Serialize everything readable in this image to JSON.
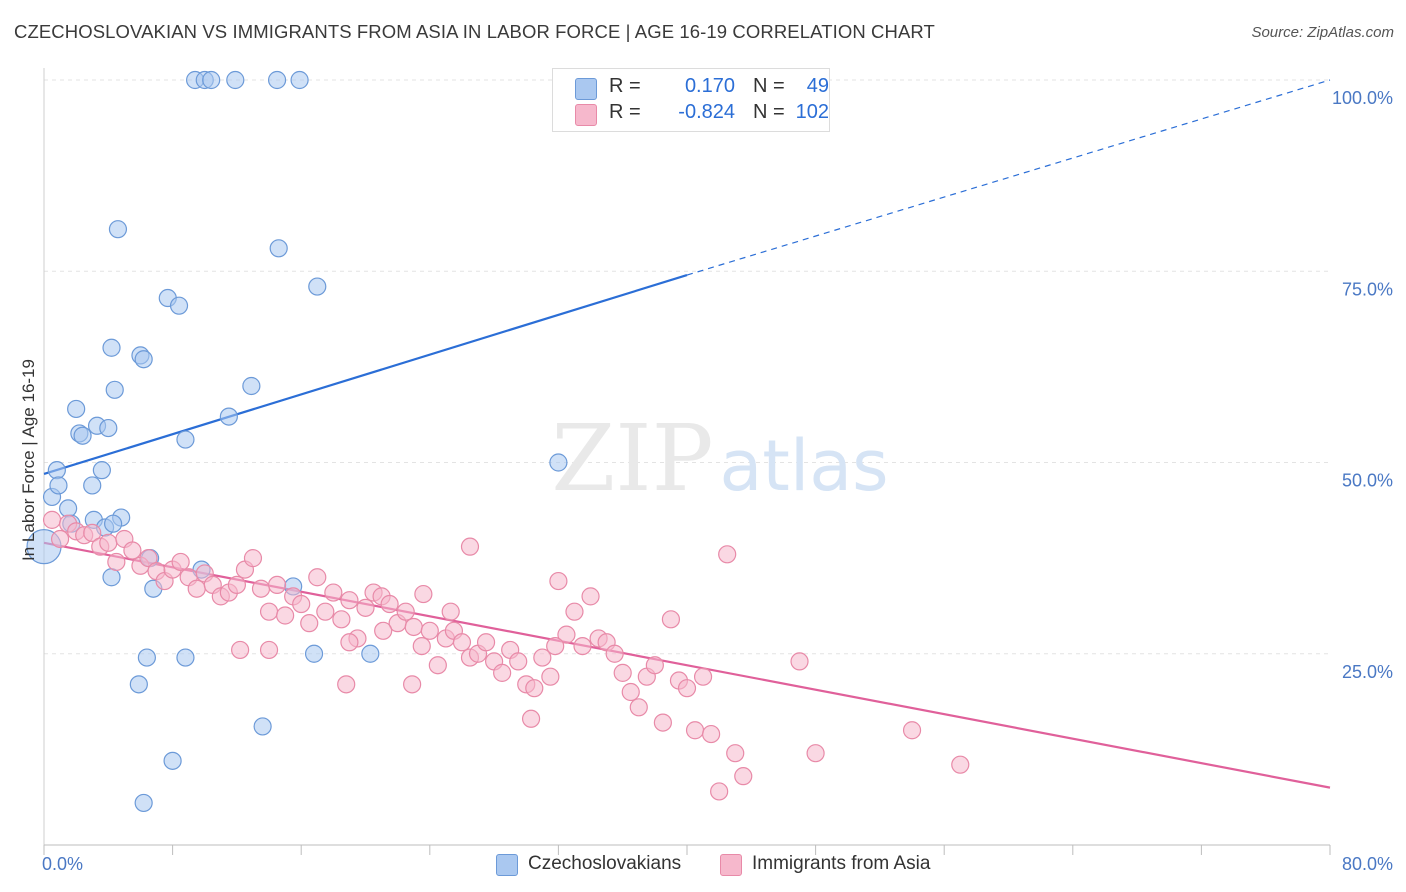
{
  "title": "CZECHOSLOVAKIAN VS IMMIGRANTS FROM ASIA IN LABOR FORCE | AGE 16-19 CORRELATION CHART",
  "source": "Source: ZipAtlas.com",
  "watermark": {
    "part1": "ZIP",
    "part2": "atlas"
  },
  "legend": {
    "rows": [
      {
        "r_label": "R =",
        "r_value": "0.170",
        "n_label": "N =",
        "n_value": "49"
      },
      {
        "r_label": "R =",
        "r_value": "-0.824",
        "n_label": "N =",
        "n_value": "102"
      }
    ]
  },
  "colors": {
    "blue_fill": "#aac8f0",
    "blue_stroke": "#6c9ad8",
    "blue_line": "#2b6ed6",
    "pink_fill": "#f6b8cc",
    "pink_stroke": "#e88aa8",
    "pink_line": "#e0609a",
    "grid": "#e3e3e3",
    "axis_text": "#4a78c4"
  },
  "chart_data": {
    "type": "scatter",
    "title": "CZECHOSLOVAKIAN VS IMMIGRANTS FROM ASIA IN LABOR FORCE | AGE 16-19 CORRELATION CHART",
    "xlabel": "",
    "ylabel": "In Labor Force | Age 16-19",
    "xlim": [
      0,
      80
    ],
    "ylim": [
      0,
      100
    ],
    "x_tick_labels": [
      "0.0%",
      "80.0%"
    ],
    "y_ticks": [
      25,
      50,
      75,
      100
    ],
    "y_tick_labels": [
      "25.0%",
      "50.0%",
      "75.0%",
      "100.0%"
    ],
    "grid": true,
    "legend_position": "top-center",
    "series": [
      {
        "name": "Czechoslovakians",
        "R": 0.17,
        "N": 49,
        "trend": {
          "x0": 0,
          "y0": 48.5,
          "x1": 40,
          "y1": 74.5,
          "dashed_to_x": 80,
          "dashed_to_y": 100
        },
        "points": [
          [
            0.0,
            39.0,
            "big"
          ],
          [
            0.5,
            45.5
          ],
          [
            0.8,
            49.0
          ],
          [
            0.9,
            47.0
          ],
          [
            1.5,
            44.0
          ],
          [
            1.7,
            42.0
          ],
          [
            2.0,
            57.0
          ],
          [
            2.2,
            53.8
          ],
          [
            2.4,
            53.5
          ],
          [
            3.0,
            47.0
          ],
          [
            3.1,
            42.5
          ],
          [
            3.3,
            54.8
          ],
          [
            3.6,
            49.0
          ],
          [
            3.8,
            41.5
          ],
          [
            4.0,
            54.5
          ],
          [
            4.2,
            65.0
          ],
          [
            4.4,
            59.5
          ],
          [
            4.6,
            80.5
          ],
          [
            4.8,
            42.8
          ],
          [
            4.2,
            35.0
          ],
          [
            6.0,
            64.0
          ],
          [
            6.2,
            63.5
          ],
          [
            6.6,
            37.5
          ],
          [
            6.8,
            33.5
          ],
          [
            7.7,
            71.5
          ],
          [
            8.4,
            70.5
          ],
          [
            8.8,
            53.0
          ],
          [
            6.4,
            24.5
          ],
          [
            5.9,
            21.0
          ],
          [
            8.0,
            11.0
          ],
          [
            6.2,
            5.5
          ],
          [
            9.4,
            100
          ],
          [
            10.0,
            100
          ],
          [
            10.4,
            100
          ],
          [
            11.9,
            100
          ],
          [
            14.5,
            100
          ],
          [
            15.9,
            100
          ],
          [
            11.5,
            56.0
          ],
          [
            12.9,
            60.0
          ],
          [
            14.6,
            78.0
          ],
          [
            17.0,
            73.0
          ],
          [
            15.5,
            33.8
          ],
          [
            16.8,
            25.0
          ],
          [
            20.3,
            25.0
          ],
          [
            13.6,
            15.5
          ],
          [
            32.0,
            50.0
          ],
          [
            8.8,
            24.5
          ],
          [
            9.8,
            36.0
          ],
          [
            4.3,
            42.0
          ]
        ]
      },
      {
        "name": "Immigrants from Asia",
        "R": -0.824,
        "N": 102,
        "trend": {
          "x0": 0,
          "y0": 39.5,
          "x1": 80,
          "y1": 7.5
        },
        "points": [
          [
            0.5,
            42.5
          ],
          [
            1.0,
            40.0
          ],
          [
            1.5,
            42.0
          ],
          [
            2.0,
            41.0
          ],
          [
            2.5,
            40.5
          ],
          [
            3.0,
            40.8
          ],
          [
            3.5,
            39.0
          ],
          [
            4.0,
            39.5
          ],
          [
            4.5,
            37.0
          ],
          [
            5.0,
            40.0
          ],
          [
            5.5,
            38.5
          ],
          [
            6.0,
            36.5
          ],
          [
            6.5,
            37.5
          ],
          [
            7.0,
            35.8
          ],
          [
            7.5,
            34.5
          ],
          [
            8.0,
            36.0
          ],
          [
            8.5,
            37.0
          ],
          [
            9.0,
            35.0
          ],
          [
            9.5,
            33.5
          ],
          [
            10.0,
            35.5
          ],
          [
            10.5,
            34.0
          ],
          [
            11.0,
            32.5
          ],
          [
            11.5,
            33.0
          ],
          [
            12.0,
            34.0
          ],
          [
            12.5,
            36.0
          ],
          [
            13.0,
            37.5
          ],
          [
            13.5,
            33.5
          ],
          [
            14.0,
            30.5
          ],
          [
            14.5,
            34.0
          ],
          [
            15.0,
            30.0
          ],
          [
            15.5,
            32.5
          ],
          [
            16.0,
            31.5
          ],
          [
            16.5,
            29.0
          ],
          [
            17.0,
            35.0
          ],
          [
            17.5,
            30.5
          ],
          [
            18.0,
            33.0
          ],
          [
            18.5,
            29.5
          ],
          [
            19.0,
            32.0
          ],
          [
            19.5,
            27.0
          ],
          [
            20.0,
            31.0
          ],
          [
            20.5,
            33.0
          ],
          [
            21.0,
            32.5
          ],
          [
            21.5,
            31.5
          ],
          [
            22.0,
            29.0
          ],
          [
            22.5,
            30.5
          ],
          [
            23.0,
            28.5
          ],
          [
            23.5,
            26.0
          ],
          [
            24.0,
            28.0
          ],
          [
            24.5,
            23.5
          ],
          [
            25.0,
            27.0
          ],
          [
            25.5,
            28.0
          ],
          [
            26.0,
            26.5
          ],
          [
            26.5,
            24.5
          ],
          [
            27.0,
            25.0
          ],
          [
            27.5,
            26.5
          ],
          [
            28.0,
            24.0
          ],
          [
            28.5,
            22.5
          ],
          [
            29.0,
            25.5
          ],
          [
            29.5,
            24.0
          ],
          [
            30.0,
            21.0
          ],
          [
            30.5,
            20.5
          ],
          [
            31.0,
            24.5
          ],
          [
            31.5,
            22.0
          ],
          [
            32.0,
            34.5
          ],
          [
            32.5,
            27.5
          ],
          [
            33.0,
            30.5
          ],
          [
            33.5,
            26.0
          ],
          [
            34.0,
            32.5
          ],
          [
            34.5,
            27.0
          ],
          [
            35.0,
            26.5
          ],
          [
            35.5,
            25.0
          ],
          [
            36.0,
            22.5
          ],
          [
            36.5,
            20.0
          ],
          [
            37.0,
            18.0
          ],
          [
            37.5,
            22.0
          ],
          [
            38.0,
            23.5
          ],
          [
            38.5,
            16.0
          ],
          [
            39.0,
            29.5
          ],
          [
            39.5,
            21.5
          ],
          [
            40.0,
            20.5
          ],
          [
            40.5,
            15.0
          ],
          [
            41.0,
            22.0
          ],
          [
            41.5,
            14.5
          ],
          [
            42.0,
            7.0
          ],
          [
            42.5,
            38.0
          ],
          [
            43.0,
            12.0
          ],
          [
            43.5,
            9.0
          ],
          [
            47.0,
            24.0
          ],
          [
            48.0,
            12.0
          ],
          [
            54.0,
            15.0
          ],
          [
            57.0,
            10.5
          ],
          [
            12.2,
            25.5
          ],
          [
            14.0,
            25.5
          ],
          [
            30.3,
            16.5
          ],
          [
            31.8,
            26.0
          ],
          [
            26.5,
            39.0
          ],
          [
            25.3,
            30.5
          ],
          [
            23.6,
            32.8
          ],
          [
            21.1,
            28.0
          ],
          [
            19.0,
            26.5
          ],
          [
            22.9,
            21.0
          ],
          [
            18.8,
            21.0
          ]
        ]
      }
    ]
  },
  "bottom_legend": {
    "items": [
      "Czechoslovakians",
      "Immigrants from Asia"
    ]
  }
}
